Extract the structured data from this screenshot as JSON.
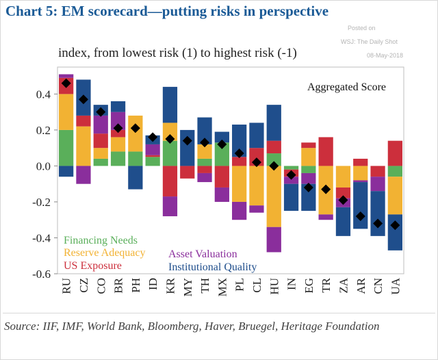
{
  "title": "Chart 5: EM scorecard—putting risks in perspective",
  "watermark": {
    "posted": "Posted on",
    "source": "WSJ: The Daily Shot",
    "date": "08-May-2018"
  },
  "subtitle": "index, from lowest risk (1) to highest risk (-1)",
  "source": "Source: IIF, IMF, World Bank, Bloomberg, Haver, Bruegel, Heritage Foundation",
  "colors": {
    "financing_needs": "#5aaf5a",
    "reserve_adequacy": "#f2b233",
    "us_exposure": "#cc2f3c",
    "asset_valuation": "#8a2e9c",
    "institutional_quality": "#1f4e8c",
    "aggregate": "#000000"
  },
  "chart_data": {
    "type": "bar",
    "stacked": true,
    "ylim": [
      -0.6,
      0.55
    ],
    "yticks": [
      -0.6,
      -0.4,
      -0.2,
      0.0,
      0.2,
      0.4
    ],
    "ytick_labels": [
      "-0.6",
      "-0.4",
      "-0.2",
      "0.0",
      "0.2",
      "0.4"
    ],
    "grid": false,
    "categories": [
      "RU",
      "CZ",
      "CO",
      "BR",
      "PH",
      "ID",
      "KR",
      "MY",
      "TH",
      "MX",
      "PL",
      "CL",
      "HU",
      "IN",
      "EG",
      "TR",
      "ZA",
      "AR",
      "CN",
      "UA"
    ],
    "series": [
      {
        "name": "Financing Needs",
        "key": "financing_needs",
        "values": [
          0.2,
          0,
          0.04,
          0.08,
          0.08,
          0.05,
          0.14,
          0,
          0.04,
          0.13,
          0,
          0,
          0.07,
          -0.02,
          -0.04,
          0,
          0,
          0,
          0,
          -0.06
        ]
      },
      {
        "name": "Reserve Adequacy",
        "key": "reserve_adequacy",
        "values": [
          0.2,
          0.22,
          0.06,
          0.08,
          0.2,
          0,
          0.1,
          0,
          0.08,
          0,
          -0.2,
          -0.22,
          -0.34,
          0,
          0.1,
          -0.27,
          -0.12,
          -0.08,
          0,
          -0.21
        ]
      },
      {
        "name": "US Exposure",
        "key": "us_exposure",
        "values": [
          0.09,
          0.06,
          0.08,
          0.04,
          0,
          0.01,
          -0.17,
          -0.07,
          -0.04,
          -0.12,
          0.05,
          0.1,
          0.07,
          -0.04,
          0.03,
          0.16,
          -0.06,
          0.04,
          -0.06,
          0.14
        ]
      },
      {
        "name": "Asset Valuation",
        "key": "asset_valuation",
        "values": [
          0.02,
          -0.1,
          0.1,
          0.1,
          0,
          0.06,
          -0.11,
          0,
          -0.05,
          -0.08,
          -0.1,
          -0.04,
          -0.14,
          -0.04,
          -0.06,
          -0.03,
          -0.05,
          -0.01,
          -0.08,
          0
        ]
      },
      {
        "name": "Institutional Quality",
        "key": "institutional_quality",
        "values": [
          -0.06,
          0.2,
          0.06,
          0.06,
          -0.13,
          0.05,
          0.2,
          0.2,
          0.15,
          0.06,
          0.18,
          0.14,
          0.2,
          -0.15,
          -0.15,
          0,
          -0.16,
          -0.26,
          -0.25,
          -0.2
        ]
      }
    ],
    "aggregate": {
      "name": "Aggregated Score",
      "values": [
        0.46,
        0.37,
        0.3,
        0.21,
        0.21,
        0.16,
        0.15,
        0.14,
        0.13,
        0.12,
        0.07,
        0.02,
        0.0,
        -0.05,
        -0.12,
        -0.13,
        -0.19,
        -0.28,
        -0.32,
        -0.33
      ]
    },
    "legend": [
      "Financing Needs",
      "Reserve Adequacy",
      "US Exposure",
      "Asset Valuation",
      "Institutional Quality"
    ],
    "legend_placement": "bottom-left"
  }
}
